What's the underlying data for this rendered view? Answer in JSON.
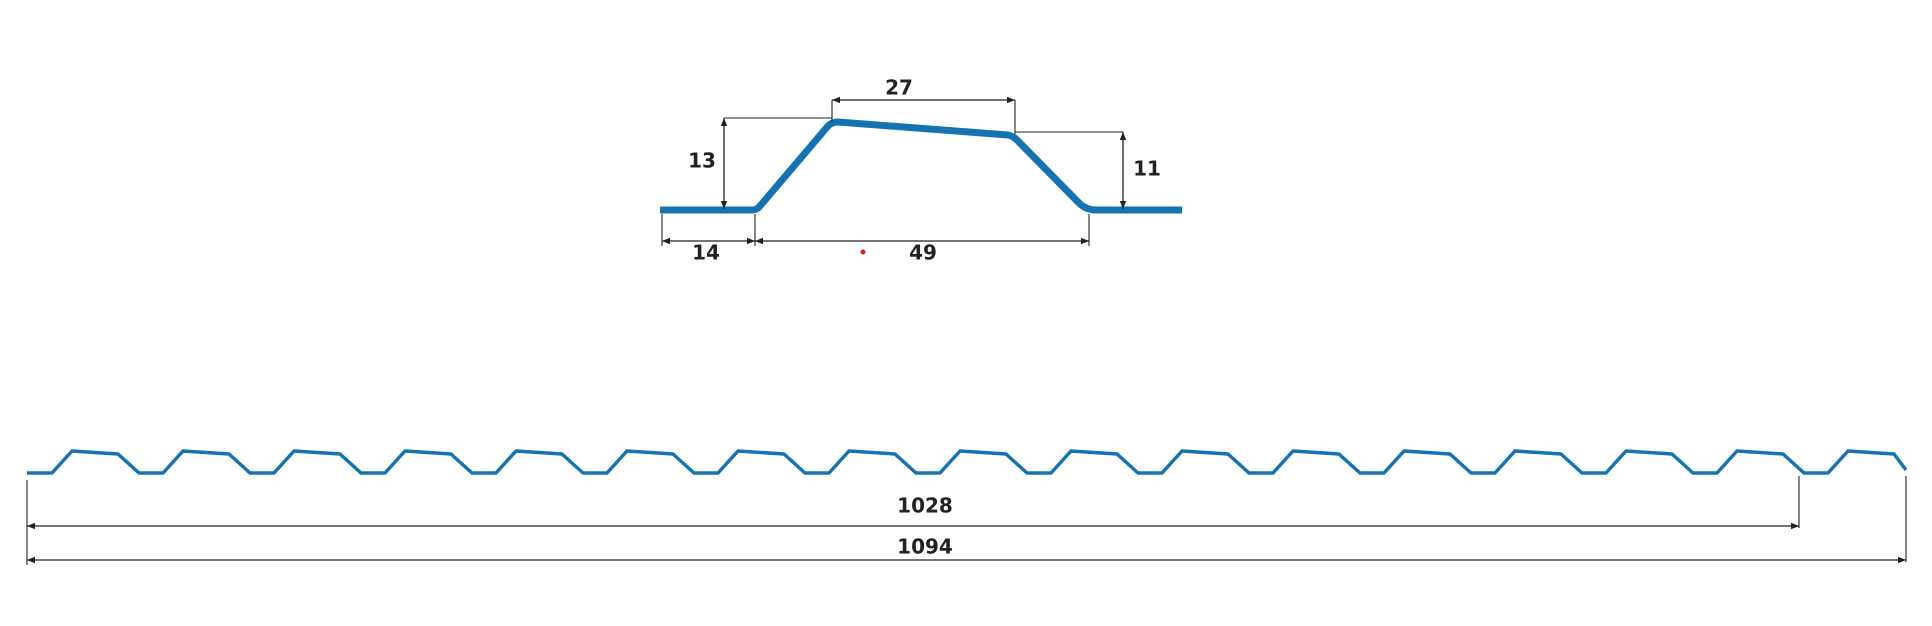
{
  "profile_detail": {
    "top_width": "27",
    "left_height": "13",
    "right_height": "11",
    "flat_width": "14",
    "base_width": "49"
  },
  "sheet": {
    "effective_width": "1028",
    "total_width": "1094"
  }
}
